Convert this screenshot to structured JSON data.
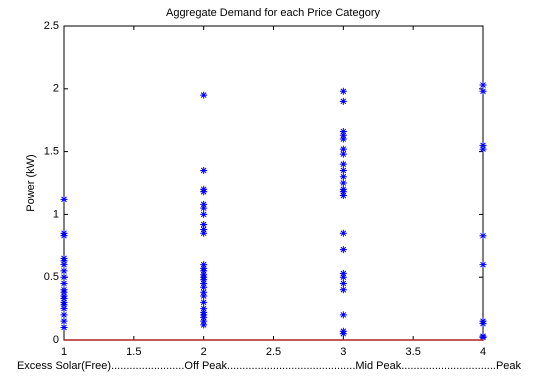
{
  "chart_data": {
    "type": "scatter",
    "title": "Aggregate Demand for each Price Category",
    "xlabel": "Excess Solar(Free)........................Off Peak..........................................Mid Peak...............................Peak",
    "ylabel": "Power (kW)",
    "xlim": [
      1,
      4
    ],
    "xticks": [
      1,
      1.5,
      2,
      2.5,
      3,
      3.5,
      4
    ],
    "ylim": [
      0,
      2.5
    ],
    "yticks": [
      0,
      0.5,
      1,
      1.5,
      2,
      2.5
    ],
    "series": [
      {
        "color": "#0000ff",
        "marker": "*",
        "x": [
          1,
          1,
          1,
          1,
          1,
          1,
          1,
          1,
          1,
          1,
          1,
          1,
          1,
          1,
          1,
          1,
          1,
          1,
          1,
          2,
          2,
          2,
          2,
          2,
          2,
          2,
          2,
          2,
          2,
          2,
          2,
          2,
          2,
          2,
          2,
          2,
          2,
          2,
          2,
          2,
          2,
          2,
          2,
          2,
          2,
          2,
          3,
          3,
          3,
          3,
          3,
          3,
          3,
          3,
          3,
          3,
          3,
          3,
          3,
          3,
          3,
          3,
          3,
          3,
          3,
          3,
          3,
          3,
          3,
          4,
          4,
          4,
          4,
          4,
          4,
          4,
          4,
          4,
          4
        ],
        "y": [
          1.12,
          0.85,
          0.83,
          0.65,
          0.63,
          0.6,
          0.55,
          0.5,
          0.45,
          0.4,
          0.38,
          0.35,
          0.33,
          0.3,
          0.28,
          0.25,
          0.2,
          0.15,
          0.1,
          1.95,
          1.35,
          1.2,
          1.18,
          1.08,
          1.05,
          1.0,
          0.92,
          0.88,
          0.85,
          0.6,
          0.57,
          0.55,
          0.52,
          0.5,
          0.48,
          0.45,
          0.42,
          0.38,
          0.35,
          0.3,
          0.25,
          0.22,
          0.2,
          0.18,
          0.15,
          0.12,
          1.98,
          1.9,
          1.66,
          1.63,
          1.6,
          1.52,
          1.48,
          1.4,
          1.35,
          1.3,
          1.25,
          1.2,
          1.18,
          1.15,
          0.85,
          0.72,
          0.53,
          0.5,
          0.45,
          0.4,
          0.2,
          0.07,
          0.05,
          2.03,
          1.98,
          1.55,
          1.52,
          0.83,
          0.6,
          0.15,
          0.13,
          0.03,
          0.02
        ]
      },
      {
        "color": "#b22222",
        "marker": "line",
        "x": [
          1,
          4
        ],
        "y": [
          0,
          0
        ]
      }
    ]
  }
}
